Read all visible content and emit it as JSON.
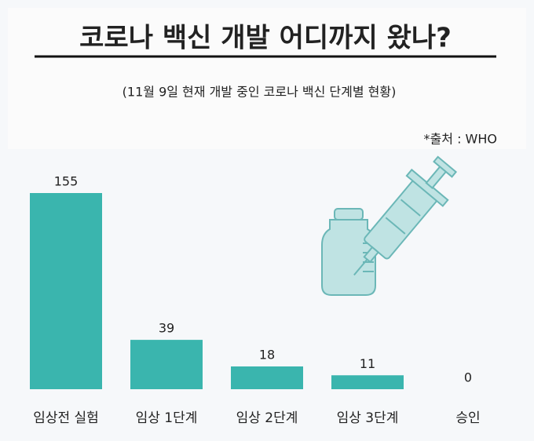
{
  "chart_data": {
    "type": "bar",
    "title": "코로나 백신 개발 어디까지 왔나?",
    "subtitle": "(11월 9일 현재 개발 중인 코로나 백신 단계별 현황)",
    "source": "*출처 :  WHO",
    "categories": [
      "임상전 실험",
      "임상 1단계",
      "임상 2단계",
      "임상 3단계",
      "승인"
    ],
    "values": [
      155,
      39,
      18,
      11,
      0
    ],
    "color": "#3ab5ae"
  }
}
